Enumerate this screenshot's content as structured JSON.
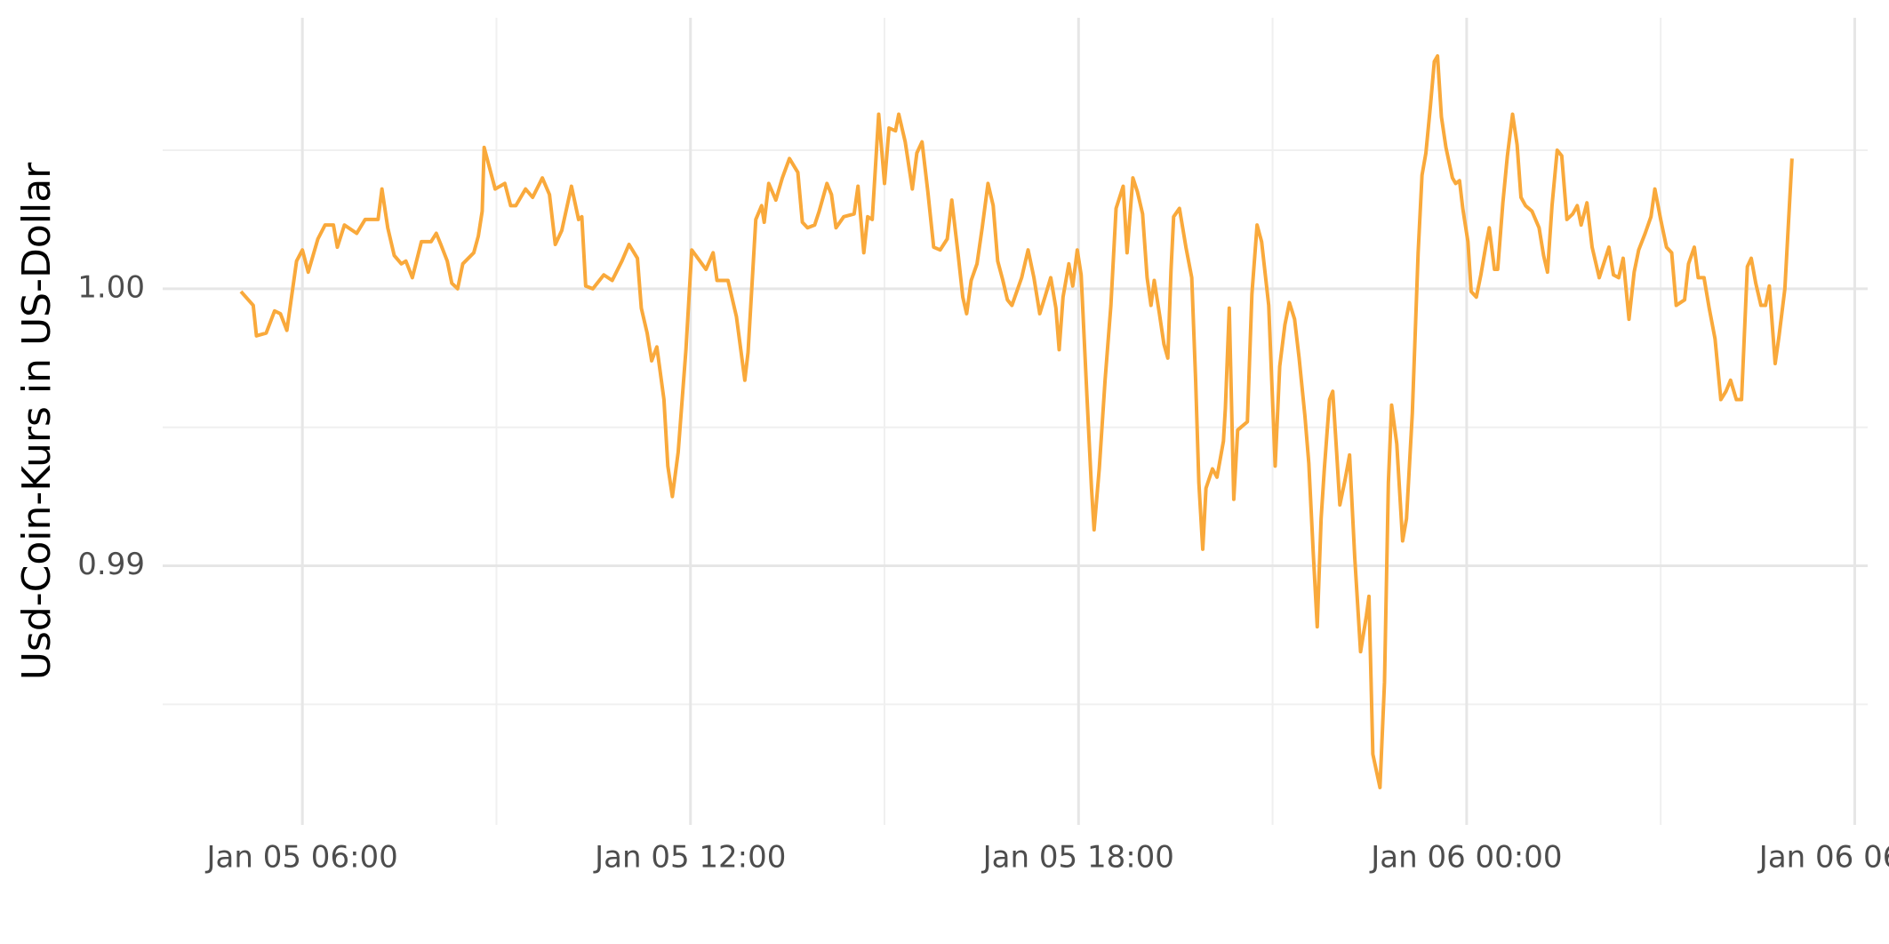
{
  "chart_data": {
    "type": "line",
    "y_label": "Usd-Coin-Kurs in US-Dollar",
    "x": [
      5.05,
      5.24,
      5.29,
      5.44,
      5.57,
      5.66,
      5.76,
      5.91,
      6.0,
      6.09,
      6.24,
      6.35,
      6.48,
      6.54,
      6.65,
      6.84,
      6.97,
      7.17,
      7.23,
      7.32,
      7.42,
      7.53,
      7.6,
      7.7,
      7.84,
      7.99,
      8.07,
      8.14,
      8.24,
      8.31,
      8.4,
      8.48,
      8.65,
      8.72,
      8.78,
      8.81,
      8.98,
      9.13,
      9.22,
      9.3,
      9.45,
      9.56,
      9.71,
      9.82,
      9.91,
      10.01,
      10.16,
      10.27,
      10.32,
      10.38,
      10.49,
      10.66,
      10.79,
      10.94,
      11.05,
      11.18,
      11.24,
      11.33,
      11.4,
      11.48,
      11.59,
      11.65,
      11.72,
      11.81,
      11.93,
      12.02,
      12.24,
      12.35,
      12.41,
      12.58,
      12.71,
      12.84,
      12.89,
      13.01,
      13.1,
      13.14,
      13.21,
      13.32,
      13.42,
      13.53,
      13.66,
      13.73,
      13.81,
      13.92,
      13.99,
      14.11,
      14.18,
      14.25,
      14.37,
      14.53,
      14.59,
      14.68,
      14.74,
      14.81,
      14.91,
      15.0,
      15.07,
      15.17,
      15.22,
      15.32,
      15.43,
      15.5,
      15.58,
      15.67,
      15.76,
      15.86,
      15.97,
      16.04,
      16.14,
      16.21,
      16.27,
      16.34,
      16.43,
      16.51,
      16.6,
      16.68,
      16.75,
      16.83,
      16.9,
      16.97,
      17.12,
      17.22,
      17.31,
      17.4,
      17.48,
      17.57,
      17.65,
      17.7,
      17.76,
      17.85,
      17.91,
      17.98,
      18.04,
      18.13,
      18.2,
      18.24,
      18.32,
      18.41,
      18.5,
      18.58,
      18.69,
      18.75,
      18.84,
      18.91,
      18.99,
      19.06,
      19.12,
      19.17,
      19.25,
      19.32,
      19.38,
      19.43,
      19.47,
      19.56,
      19.66,
      19.75,
      19.81,
      19.86,
      19.92,
      19.97,
      20.07,
      20.14,
      20.24,
      20.27,
      20.33,
      20.4,
      20.46,
      20.61,
      20.68,
      20.76,
      20.83,
      20.94,
      21.04,
      21.11,
      21.19,
      21.26,
      21.34,
      21.41,
      21.5,
      21.56,
      21.63,
      21.69,
      21.75,
      21.8,
      21.88,
      21.93,
      21.99,
      22.04,
      22.12,
      22.19,
      22.27,
      22.36,
      22.45,
      22.49,
      22.55,
      22.66,
      22.73,
      22.79,
      22.84,
      22.92,
      23.01,
      23.07,
      23.16,
      23.25,
      23.31,
      23.37,
      23.44,
      23.5,
      23.55,
      23.61,
      23.68,
      23.78,
      23.83,
      23.89,
      23.94,
      24.02,
      24.07,
      24.15,
      24.22,
      24.3,
      24.35,
      24.43,
      24.48,
      24.56,
      24.63,
      24.71,
      24.78,
      24.84,
      24.91,
      25.01,
      25.12,
      25.19,
      25.25,
      25.32,
      25.4,
      25.47,
      25.55,
      25.64,
      25.71,
      25.77,
      25.86,
      25.94,
      26.05,
      26.2,
      26.27,
      26.35,
      26.42,
      26.51,
      26.59,
      26.66,
      26.76,
      26.85,
      26.91,
      27.0,
      27.09,
      27.17,
      27.24,
      27.37,
      27.43,
      27.52,
      27.58,
      27.67,
      27.75,
      27.84,
      27.93,
      28.01,
      28.08,
      28.17,
      28.25,
      28.34,
      28.4,
      28.47,
      28.55,
      28.62,
      28.68,
      28.77,
      28.83,
      28.92,
      29.03
    ],
    "series": [
      {
        "name": "Usd-Coin",
        "color": "#f9a93b",
        "values": [
          0.9999,
          0.9994,
          0.9983,
          0.9984,
          0.9992,
          0.9991,
          0.9985,
          1.001,
          1.0014,
          1.0006,
          1.0018,
          1.0023,
          1.0023,
          1.0015,
          1.0023,
          1.002,
          1.0025,
          1.0025,
          1.0036,
          1.0022,
          1.0012,
          1.0009,
          1.001,
          1.0004,
          1.0017,
          1.0017,
          1.002,
          1.0016,
          1.001,
          1.0002,
          1.0,
          1.0009,
          1.0013,
          1.0019,
          1.0028,
          1.0051,
          1.0036,
          1.0038,
          1.003,
          1.003,
          1.0036,
          1.0033,
          1.004,
          1.0034,
          1.0016,
          1.0021,
          1.0037,
          1.0025,
          1.0026,
          1.0001,
          1.0,
          1.0005,
          1.0003,
          1.001,
          1.0016,
          1.0011,
          0.9993,
          0.9984,
          0.9974,
          0.9979,
          0.996,
          0.9936,
          0.9925,
          0.9941,
          0.9978,
          1.0014,
          1.0007,
          1.0013,
          1.0003,
          1.0003,
          0.999,
          0.9967,
          0.9977,
          1.0025,
          1.003,
          1.0024,
          1.0038,
          1.0032,
          1.004,
          1.0047,
          1.0042,
          1.0024,
          1.0022,
          1.0023,
          1.0028,
          1.0038,
          1.0034,
          1.0022,
          1.0026,
          1.0027,
          1.0037,
          1.0013,
          1.0026,
          1.0025,
          1.0063,
          1.0038,
          1.0058,
          1.0057,
          1.0063,
          1.0053,
          1.0036,
          1.0049,
          1.0053,
          1.0035,
          1.0015,
          1.0014,
          1.0018,
          1.0032,
          1.0012,
          0.9997,
          0.9991,
          1.0003,
          1.0009,
          1.0022,
          1.0038,
          1.003,
          1.001,
          1.0003,
          0.9996,
          0.9994,
          1.0004,
          1.0014,
          1.0004,
          0.9991,
          0.9997,
          1.0004,
          0.9993,
          0.9978,
          0.9997,
          1.0009,
          1.0001,
          1.0014,
          1.0005,
          0.9961,
          0.9928,
          0.9913,
          0.9935,
          0.9967,
          0.9994,
          1.0029,
          1.0037,
          1.0013,
          1.004,
          1.0035,
          1.0027,
          1.0004,
          0.9994,
          1.0003,
          0.9991,
          0.998,
          0.9975,
          1.0007,
          1.0026,
          1.0029,
          1.0015,
          1.0004,
          0.9967,
          0.993,
          0.9906,
          0.9928,
          0.9935,
          0.9932,
          0.9945,
          0.9957,
          0.9993,
          0.9924,
          0.9949,
          0.9952,
          0.9998,
          1.0023,
          1.0017,
          0.9994,
          0.9936,
          0.9972,
          0.9987,
          0.9995,
          0.9989,
          0.9975,
          0.9954,
          0.9937,
          0.9904,
          0.9878,
          0.9917,
          0.9935,
          0.996,
          0.9963,
          0.9941,
          0.9922,
          0.9931,
          0.994,
          0.9903,
          0.9869,
          0.9882,
          0.9889,
          0.9832,
          0.982,
          0.9858,
          0.993,
          0.9958,
          0.9944,
          0.9909,
          0.9917,
          0.9955,
          1.0013,
          1.0041,
          1.0049,
          1.0066,
          1.0082,
          1.0084,
          1.0062,
          1.0051,
          1.004,
          1.0038,
          1.0039,
          1.0029,
          1.0017,
          0.9999,
          0.9997,
          1.0005,
          1.0016,
          1.0022,
          1.0007,
          1.0007,
          1.0031,
          1.0048,
          1.0063,
          1.0052,
          1.0033,
          1.003,
          1.0028,
          1.0022,
          1.0012,
          1.0006,
          1.003,
          1.005,
          1.0048,
          1.0025,
          1.0027,
          1.003,
          1.0023,
          1.0031,
          1.0015,
          1.0004,
          1.0015,
          1.0005,
          1.0004,
          1.0011,
          0.9989,
          1.0006,
          1.0014,
          1.002,
          1.0026,
          1.0036,
          1.0025,
          1.0015,
          1.0013,
          0.9994,
          0.9996,
          1.0009,
          1.0015,
          1.0004,
          1.0004,
          0.9993,
          0.9982,
          0.996,
          0.9963,
          0.9967,
          0.996,
          0.996,
          1.0008,
          1.0011,
          1.0002,
          0.9994,
          0.9994,
          1.0001,
          0.9973,
          0.9983,
          1.0,
          1.0047
        ]
      }
    ],
    "xlim": [
      3.84,
      30.2
    ],
    "xticks": [
      {
        "value": 6,
        "label": "Jan 05 06:00"
      },
      {
        "value": 12,
        "label": "Jan 05 12:00"
      },
      {
        "value": 18,
        "label": "Jan 05 18:00"
      },
      {
        "value": 24,
        "label": "Jan 06 00:00"
      },
      {
        "value": 30,
        "label": "Jan 06 06:00"
      }
    ],
    "xminor": [
      9,
      15,
      21,
      27
    ],
    "ylim": [
      0.98065,
      1.00978
    ],
    "yticks": [
      0.99,
      {
        "value": 1,
        "label": "1.00"
      }
    ],
    "yminor": [
      0.985,
      0.995,
      1.005
    ],
    "grid": true
  }
}
